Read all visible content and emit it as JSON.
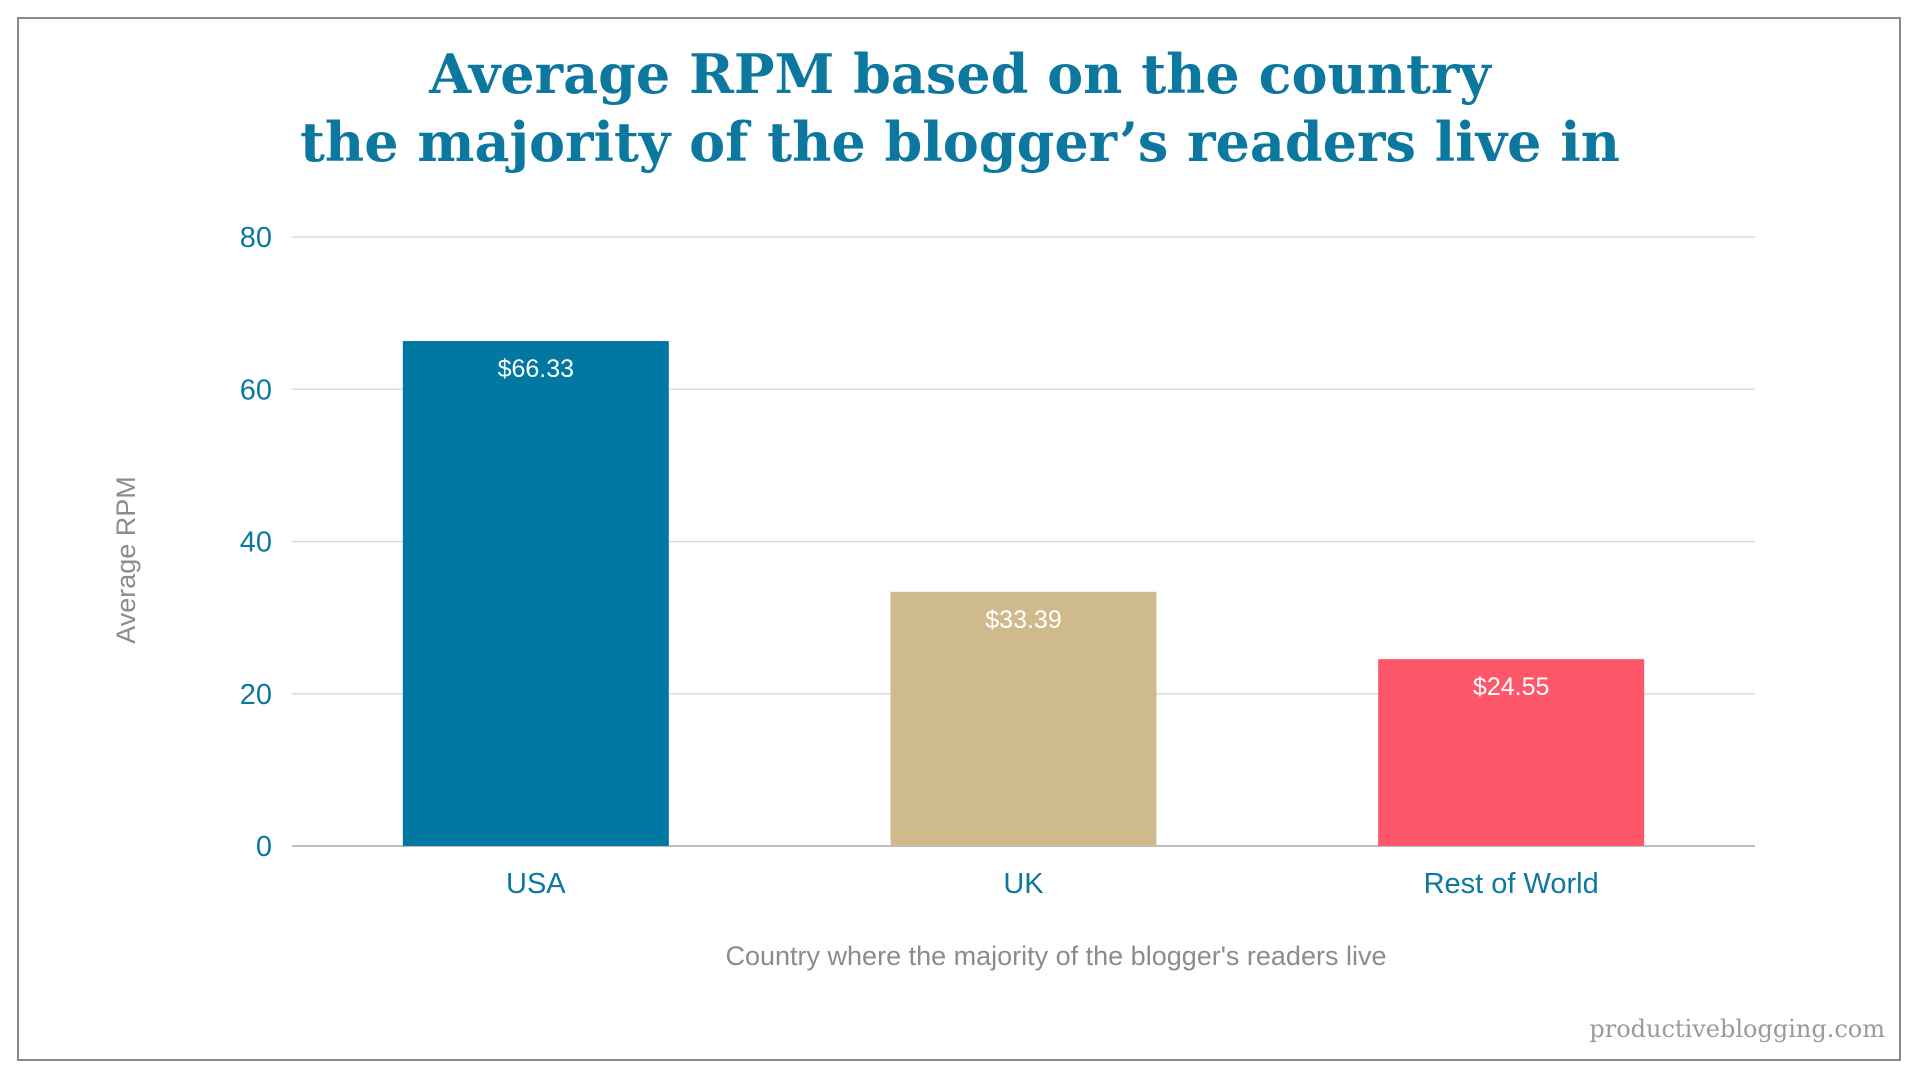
{
  "chart_data": {
    "type": "bar",
    "title_lines": [
      "Average RPM based on the country",
      "the majority of the blogger’s readers live in"
    ],
    "categories": [
      "USA",
      "UK",
      "Rest of World"
    ],
    "values": [
      66.33,
      33.39,
      24.55
    ],
    "data_labels": [
      "$66.33",
      "$33.39",
      "$24.55"
    ],
    "bar_colors": [
      "#0078a2",
      "#cfba8d",
      "#fd5769"
    ],
    "xlabel": "Country where the majority of the blogger's readers live",
    "ylabel": "Average RPM",
    "ylim": [
      0,
      80
    ],
    "yticks": [
      0,
      20,
      40,
      60,
      80
    ],
    "grid": true,
    "legend": "none"
  },
  "credit": "productiveblogging.com"
}
